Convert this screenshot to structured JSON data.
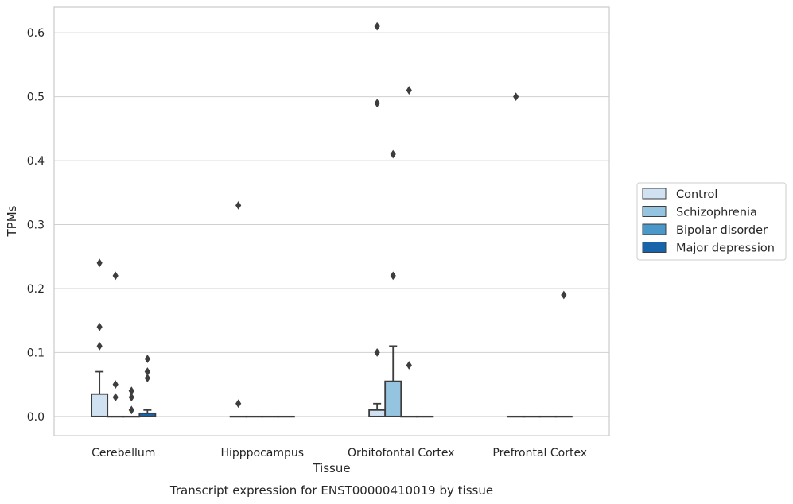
{
  "chart_data": {
    "type": "box",
    "title": "",
    "caption": "Transcript expression for ENST00000410019 by tissue",
    "xlabel": "Tissue",
    "ylabel": "TPMs",
    "ylim": [
      -0.03,
      0.64
    ],
    "yticks": [
      0.0,
      0.1,
      0.2,
      0.3,
      0.4,
      0.5,
      0.6
    ],
    "ytick_labels": [
      "0.0",
      "0.1",
      "0.2",
      "0.3",
      "0.4",
      "0.5",
      "0.6"
    ],
    "grid": "horizontal",
    "legend_position": "right",
    "categories": [
      "Cerebellum",
      "Hipppocampus",
      "Orbitofontal Cortex",
      "Prefrontal Cortex"
    ],
    "series": [
      {
        "name": "Control",
        "color": "#d0e1f2",
        "boxes": [
          {
            "q1": 0.0,
            "median": 0.0,
            "q3": 0.035,
            "whisker_low": 0.0,
            "whisker_high": 0.07,
            "outliers": [
              0.24,
              0.14,
              0.11
            ]
          },
          {
            "q1": 0.0,
            "median": 0.0,
            "q3": 0.0,
            "whisker_low": 0.0,
            "whisker_high": 0.0,
            "outliers": [
              0.33,
              0.02
            ]
          },
          {
            "q1": 0.0,
            "median": 0.0,
            "q3": 0.01,
            "whisker_low": 0.0,
            "whisker_high": 0.02,
            "outliers": [
              0.61,
              0.49,
              0.1
            ]
          },
          {
            "q1": 0.0,
            "median": 0.0,
            "q3": 0.0,
            "whisker_low": 0.0,
            "whisker_high": 0.0,
            "outliers": [
              0.5
            ]
          }
        ]
      },
      {
        "name": "Schizophrenia",
        "color": "#94c4df",
        "boxes": [
          {
            "q1": 0.0,
            "median": 0.0,
            "q3": 0.0,
            "whisker_low": 0.0,
            "whisker_high": 0.0,
            "outliers": [
              0.22,
              0.05,
              0.03
            ]
          },
          {
            "q1": 0.0,
            "median": 0.0,
            "q3": 0.0,
            "whisker_low": 0.0,
            "whisker_high": 0.0,
            "outliers": []
          },
          {
            "q1": 0.0,
            "median": 0.0,
            "q3": 0.055,
            "whisker_low": 0.0,
            "whisker_high": 0.11,
            "outliers": [
              0.41,
              0.22
            ]
          },
          {
            "q1": 0.0,
            "median": 0.0,
            "q3": 0.0,
            "whisker_low": 0.0,
            "whisker_high": 0.0,
            "outliers": []
          }
        ]
      },
      {
        "name": "Bipolar disorder",
        "color": "#4a98c9",
        "boxes": [
          {
            "q1": 0.0,
            "median": 0.0,
            "q3": 0.0,
            "whisker_low": 0.0,
            "whisker_high": 0.0,
            "outliers": [
              0.04,
              0.03,
              0.01
            ]
          },
          {
            "q1": 0.0,
            "median": 0.0,
            "q3": 0.0,
            "whisker_low": 0.0,
            "whisker_high": 0.0,
            "outliers": []
          },
          {
            "q1": 0.0,
            "median": 0.0,
            "q3": 0.0,
            "whisker_low": 0.0,
            "whisker_high": 0.0,
            "outliers": [
              0.51,
              0.08
            ]
          },
          {
            "q1": 0.0,
            "median": 0.0,
            "q3": 0.0,
            "whisker_low": 0.0,
            "whisker_high": 0.0,
            "outliers": []
          }
        ]
      },
      {
        "name": "Major depression",
        "color": "#1764ab",
        "boxes": [
          {
            "q1": 0.0,
            "median": 0.0,
            "q3": 0.005,
            "whisker_low": 0.0,
            "whisker_high": 0.01,
            "outliers": [
              0.09,
              0.07,
              0.06
            ]
          },
          {
            "q1": 0.0,
            "median": 0.0,
            "q3": 0.0,
            "whisker_low": 0.0,
            "whisker_high": 0.0,
            "outliers": []
          },
          {
            "q1": 0.0,
            "median": 0.0,
            "q3": 0.0,
            "whisker_low": 0.0,
            "whisker_high": 0.0,
            "outliers": []
          },
          {
            "q1": 0.0,
            "median": 0.0,
            "q3": 0.0,
            "whisker_low": 0.0,
            "whisker_high": 0.0,
            "outliers": [
              0.19
            ]
          }
        ]
      }
    ]
  }
}
